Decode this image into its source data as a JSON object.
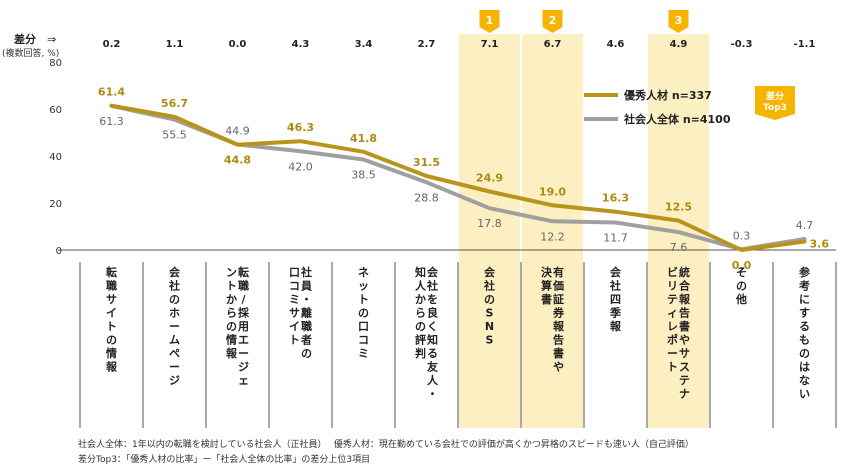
{
  "chart_data": {
    "type": "line",
    "diff_label": "差分",
    "diff_arrow": "⇒",
    "unit_label": "(複数回答, %)",
    "categories": [
      "転職サイトの情報",
      "会社のホームページ",
      "転職/採用エージェントからの情報",
      "社員・離職者の口コミサイト",
      "ネットの口コミ",
      "会社を良く知る友人・知人からの評判",
      "会社のSNS",
      "有価証券報告書や決算書",
      "会社四季報",
      "統合報告書やサステナビリティレポート",
      "その他",
      "参考にするものはない"
    ],
    "category_columns": [
      [
        "転職サイトの情報"
      ],
      [
        "会社のホームページ"
      ],
      [
        "転職/採用エージェ",
        "ントからの情報"
      ],
      [
        "社員・離職者の",
        "口コミサイト"
      ],
      [
        "ネットの口コミ"
      ],
      [
        "会社を良く知る友人・",
        "知人からの評判"
      ],
      [
        "会社のSNS"
      ],
      [
        "有価証券報告書や",
        "決算書"
      ],
      [
        "会社四季報"
      ],
      [
        "統合報告書やサステナ",
        "ビリティレポート"
      ],
      [
        "その他"
      ],
      [
        "参考にするものはない"
      ]
    ],
    "diff_values": [
      "0.2",
      "1.1",
      "0.0",
      "4.3",
      "3.4",
      "2.7",
      "7.1",
      "6.7",
      "4.6",
      "4.9",
      "-0.3",
      "-1.1"
    ],
    "top3": [
      {
        "index": 6,
        "rank": "1"
      },
      {
        "index": 7,
        "rank": "2"
      },
      {
        "index": 9,
        "rank": "3"
      }
    ],
    "top3_badge": [
      "差分",
      "Top3"
    ],
    "series": [
      {
        "name": "優秀人材 n=337",
        "color": "#b8941a",
        "values": [
          61.4,
          56.7,
          44.8,
          46.3,
          41.8,
          31.5,
          24.9,
          19.0,
          16.3,
          12.5,
          0.0,
          3.6
        ],
        "labels": [
          "61.4",
          "56.7",
          "44.8",
          "46.3",
          "41.8",
          "31.5",
          "24.9",
          "19.0",
          "16.3",
          "12.5",
          "0.0",
          "3.6"
        ],
        "label_pos": [
          "above",
          "above",
          "below",
          "above",
          "above",
          "above",
          "above",
          "above",
          "above",
          "above",
          "below",
          "right"
        ]
      },
      {
        "name": "社会人全体 n=4100",
        "color": "#a0a0a0",
        "values": [
          61.3,
          55.5,
          44.9,
          42.0,
          38.5,
          28.8,
          17.8,
          12.2,
          11.7,
          7.6,
          0.3,
          4.7
        ],
        "labels": [
          "61.3",
          "55.5",
          "44.9",
          "42.0",
          "38.5",
          "28.8",
          "17.8",
          "12.2",
          "11.7",
          "7.6",
          "0.3",
          "4.7"
        ],
        "label_pos": [
          "below",
          "below",
          "above",
          "below",
          "below",
          "below",
          "below",
          "below",
          "below",
          "below",
          "above",
          "above"
        ]
      }
    ],
    "y_ticks": [
      "0",
      "20",
      "40",
      "60",
      "80"
    ],
    "ylim": [
      0,
      80
    ],
    "highlight_color": "#fcefc2",
    "badge_color": "#f5b400"
  },
  "footnotes": {
    "line1": "社会人全体：1年以内の転職を検討している社会人（正社員）　 優秀人材：現在勤めている会社での評価が高くかつ昇格のスピードも速い人（自己評価）",
    "line2": "差分Top3：「優秀人材の比率」ー「社会人全体の比率」の差分上位3項目"
  }
}
